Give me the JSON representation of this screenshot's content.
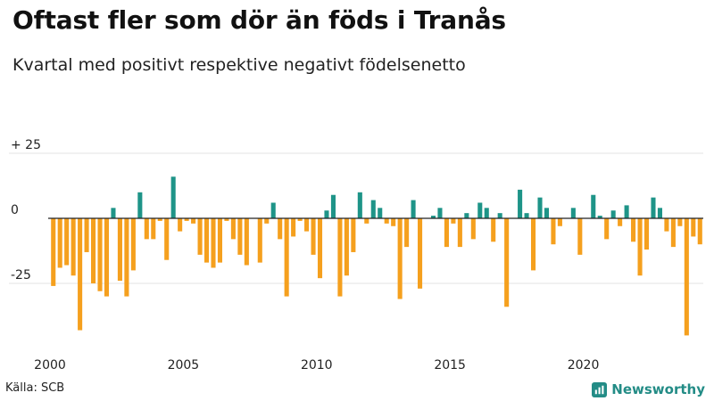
{
  "header": {
    "title": "Oftast fler som dör än föds i Tranås",
    "subtitle": "Kvartal med positivt respektive negativt födelsenetto"
  },
  "footer": {
    "source": "Källa: SCB",
    "brand": "Newsworthy"
  },
  "colors": {
    "positive": "#1E9488",
    "negative": "#F5A01E",
    "brand": "#238C86"
  },
  "chart_data": {
    "type": "bar",
    "title": "Oftast fler som dör än föds i Tranås",
    "subtitle": "Kvartal med positivt respektive negativt födelsenetto",
    "xlabel": "",
    "ylabel": "",
    "ylim": [
      -47,
      25
    ],
    "yticks": [
      25,
      0,
      -25
    ],
    "ytick_labels": [
      "+ 25",
      "0",
      "-25"
    ],
    "xticks": [
      "2000",
      "2005",
      "2010",
      "2015",
      "2020"
    ],
    "start_year": 2000,
    "values": [
      -26,
      -19,
      -18,
      -22,
      -43,
      -13,
      -25,
      -28,
      -30,
      4,
      -24,
      -30,
      -20,
      10,
      -8,
      -8,
      -1,
      -16,
      16,
      -5,
      -1,
      -2,
      -14,
      -17,
      -19,
      -17,
      -1,
      -8,
      -14,
      -18,
      0,
      -17,
      -2,
      6,
      -8,
      -30,
      -7,
      -1,
      -5,
      -14,
      -23,
      3,
      9,
      -30,
      -22,
      -13,
      10,
      -2,
      7,
      4,
      -2,
      -3,
      -31,
      -11,
      7,
      -27,
      0,
      1,
      4,
      -11,
      -2,
      -11,
      2,
      -8,
      6,
      4,
      -9,
      2,
      -34,
      0,
      11,
      2,
      -20,
      8,
      4,
      -10,
      -3,
      0,
      4,
      -14,
      0,
      9,
      1,
      -8,
      3,
      -3,
      5,
      -9,
      -22,
      -12,
      8,
      4,
      -5,
      -11,
      -3,
      -45,
      -7,
      -10
    ]
  }
}
